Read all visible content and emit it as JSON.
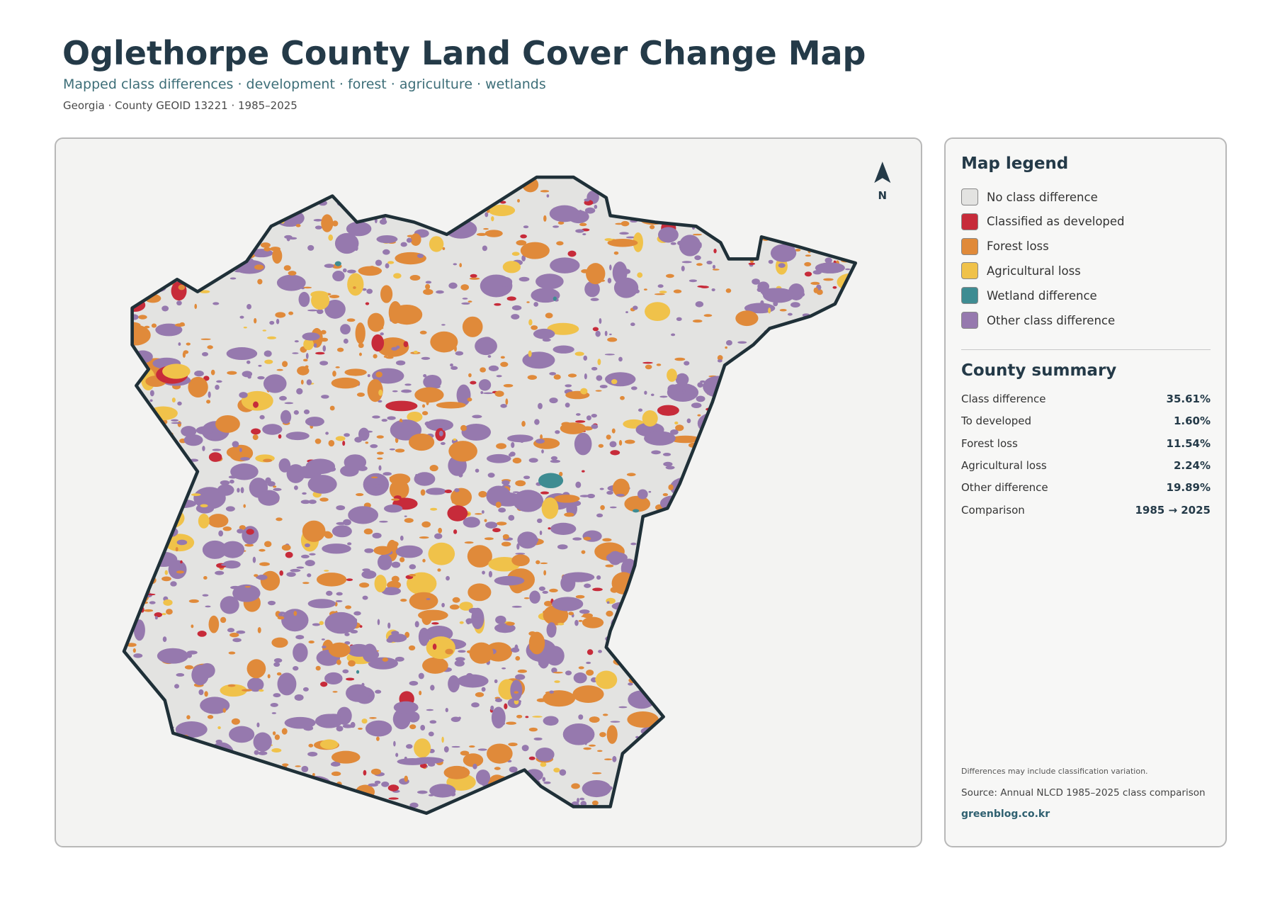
{
  "header": {
    "title": "Oglethorpe County Land Cover Change Map",
    "subtitle": "Mapped class differences · development · forest · agriculture · wetlands",
    "meta": "Georgia · County GEOID 13221 · 1985–2025"
  },
  "map": {
    "north_label": "N"
  },
  "legend": {
    "title": "Map legend",
    "items": [
      {
        "label": "No class difference",
        "color": "#e3e3e1"
      },
      {
        "label": "Classified as developed",
        "color": "#c72b3a"
      },
      {
        "label": "Forest loss",
        "color": "#e08a3a"
      },
      {
        "label": "Agricultural loss",
        "color": "#f0c24a"
      },
      {
        "label": "Wetland difference",
        "color": "#3e8c92"
      },
      {
        "label": "Other class difference",
        "color": "#9679ae"
      }
    ]
  },
  "summary": {
    "title": "County summary",
    "rows": [
      {
        "label": "Class difference",
        "value": "35.61%"
      },
      {
        "label": "To developed",
        "value": "1.60%"
      },
      {
        "label": "Forest loss",
        "value": "11.54%"
      },
      {
        "label": "Agricultural loss",
        "value": "2.24%"
      },
      {
        "label": "Other difference",
        "value": "19.89%"
      },
      {
        "label": "Comparison",
        "value": "1985 → 2025"
      }
    ]
  },
  "footer": {
    "note": "Differences may include classification variation.",
    "source": "Source: Annual NLCD 1985–2025 class comparison",
    "site": "greenblog.co.kr"
  }
}
